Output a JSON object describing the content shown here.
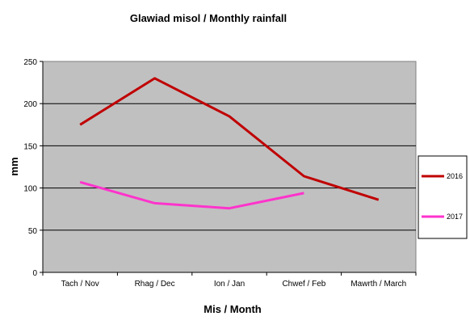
{
  "chart_data": {
    "type": "line",
    "title": "Glawiad misol / Monthly rainfall",
    "xlabel": "Mis / Month",
    "ylabel": "mm",
    "categories": [
      "Tach / Nov",
      "Rhag / Dec",
      "Ion / Jan",
      "Chwef / Feb",
      "Mawrth / March"
    ],
    "yticks": [
      "0",
      "50",
      "100",
      "150",
      "200",
      "250"
    ],
    "ylim": [
      0,
      250
    ],
    "grid": "horizontal",
    "legend": "right",
    "plot_background": "#c0c0c0",
    "series": [
      {
        "name": "2016",
        "color": "#c00000",
        "values": [
          175,
          230,
          185,
          114,
          86
        ]
      },
      {
        "name": "2017",
        "color": "#ff33cc",
        "values": [
          107,
          82,
          76,
          94,
          null
        ]
      }
    ]
  }
}
